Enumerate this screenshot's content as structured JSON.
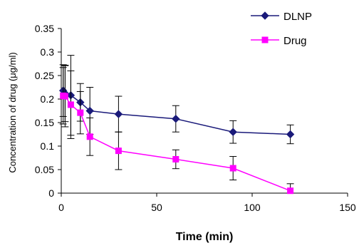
{
  "chart_data": {
    "type": "line",
    "xlabel": "Time (min)",
    "ylabel": "Concentration of drug (μg/ml)",
    "xlim": [
      0,
      150
    ],
    "ylim": [
      0,
      0.35
    ],
    "xticks": [
      "0",
      "50",
      "100",
      "150"
    ],
    "yticks": [
      "0",
      "0.05",
      "0.1",
      "0.15",
      "0.2",
      "0.25",
      "0.3",
      "0.35"
    ],
    "legend_position": "top-right",
    "grid": false,
    "series": [
      {
        "name": "DLNP",
        "color": "#1a1a7a",
        "marker": "diamond",
        "x": [
          1,
          2,
          5,
          10,
          15,
          30,
          60,
          90,
          120
        ],
        "y": [
          0.218,
          0.212,
          0.208,
          0.193,
          0.175,
          0.168,
          0.158,
          0.13,
          0.125
        ],
        "err": [
          0.055,
          0.06,
          0.085,
          0.04,
          0.05,
          0.038,
          0.028,
          0.024,
          0.02
        ]
      },
      {
        "name": "Drug",
        "color": "#ff00ff",
        "marker": "square",
        "x": [
          1,
          2,
          5,
          10,
          15,
          30,
          60,
          90,
          120
        ],
        "y": [
          0.207,
          0.206,
          0.188,
          0.171,
          0.12,
          0.09,
          0.072,
          0.053,
          0.005
        ],
        "err": [
          0.06,
          0.065,
          0.072,
          0.045,
          0.04,
          0.04,
          0.02,
          0.025,
          0.015
        ]
      }
    ]
  }
}
